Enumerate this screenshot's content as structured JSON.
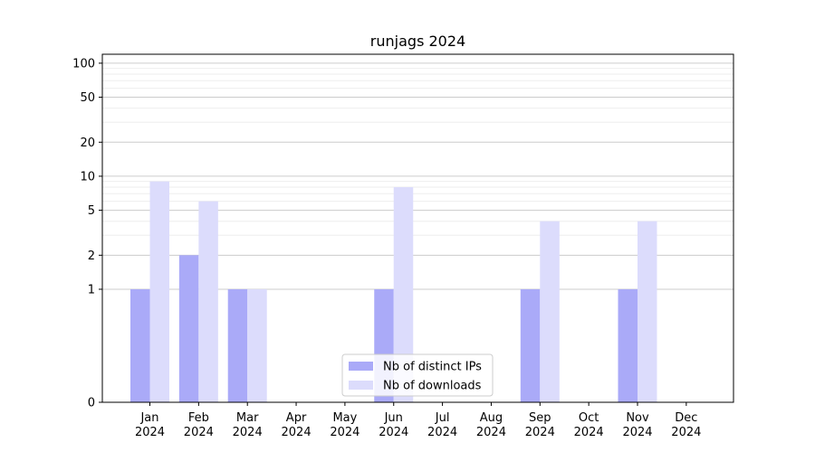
{
  "chart_data": {
    "type": "bar",
    "title": "runjags 2024",
    "xlabel": "",
    "ylabel": "",
    "yscale": "symlog",
    "ylim": [
      0,
      120
    ],
    "yticks": [
      0,
      1,
      2,
      5,
      10,
      20,
      50,
      100
    ],
    "grid": true,
    "legend_position": "bottom-center",
    "categories": [
      {
        "month": "Jan",
        "year": "2024"
      },
      {
        "month": "Feb",
        "year": "2024"
      },
      {
        "month": "Mar",
        "year": "2024"
      },
      {
        "month": "Apr",
        "year": "2024"
      },
      {
        "month": "May",
        "year": "2024"
      },
      {
        "month": "Jun",
        "year": "2024"
      },
      {
        "month": "Jul",
        "year": "2024"
      },
      {
        "month": "Aug",
        "year": "2024"
      },
      {
        "month": "Sep",
        "year": "2024"
      },
      {
        "month": "Oct",
        "year": "2024"
      },
      {
        "month": "Nov",
        "year": "2024"
      },
      {
        "month": "Dec",
        "year": "2024"
      }
    ],
    "series": [
      {
        "name": "Nb of distinct IPs",
        "color": "#aaaaf8",
        "values": [
          1,
          2,
          1,
          0,
          0,
          1,
          0,
          0,
          1,
          0,
          1,
          0
        ]
      },
      {
        "name": "Nb of downloads",
        "color": "#dcdcfc",
        "values": [
          9,
          6,
          1,
          0,
          0,
          8,
          0,
          0,
          4,
          0,
          4,
          0
        ]
      }
    ]
  }
}
